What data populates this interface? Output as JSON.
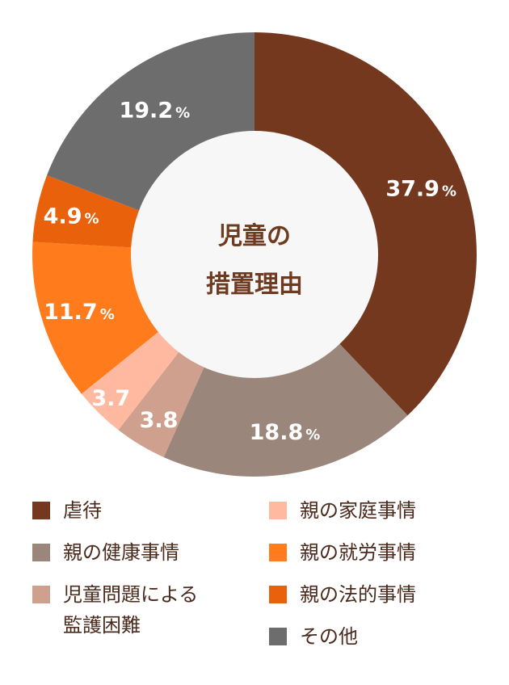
{
  "center_label": [
    "児童の",
    "措置理由"
  ],
  "colors": {
    "center_fill": "#f7f7f7",
    "center_text": "#6e3a20",
    "legend_text": "#4a2a1c"
  },
  "chart_data": {
    "type": "pie",
    "categories": [
      "虐待",
      "親の健康事情",
      "児童問題による\n監護困難",
      "親の家庭事情",
      "親の就労事情",
      "親の法的事情",
      "その他"
    ],
    "values": [
      37.9,
      18.8,
      3.8,
      3.7,
      11.7,
      4.9,
      19.2
    ],
    "slice_labels": [
      {
        "num": "37.9",
        "unit": "%"
      },
      {
        "num": "18.8",
        "unit": "%"
      },
      {
        "num": "3.8",
        "unit": ""
      },
      {
        "num": "3.7",
        "unit": ""
      },
      {
        "num": "11.7",
        "unit": "%"
      },
      {
        "num": "4.9",
        "unit": "%"
      },
      {
        "num": "19.2",
        "unit": "%"
      }
    ],
    "colors": [
      "#74381f",
      "#9b867c",
      "#d0a08e",
      "#ffb9a0",
      "#ff7b1c",
      "#e9610b",
      "#6d6d6d"
    ],
    "legend_placement": "bottom"
  },
  "legend": {
    "items": [
      {
        "label": "虐待",
        "color": "#74381f"
      },
      {
        "label": "親の健康事情",
        "color": "#9b867c"
      },
      {
        "label": "児童問題による\n監護困難",
        "color": "#d0a08e"
      },
      {
        "label": "親の家庭事情",
        "color": "#ffb9a0"
      },
      {
        "label": "親の就労事情",
        "color": "#ff7b1c"
      },
      {
        "label": "親の法的事情",
        "color": "#e9610b"
      },
      {
        "label": "その他",
        "color": "#6d6d6d"
      }
    ]
  }
}
